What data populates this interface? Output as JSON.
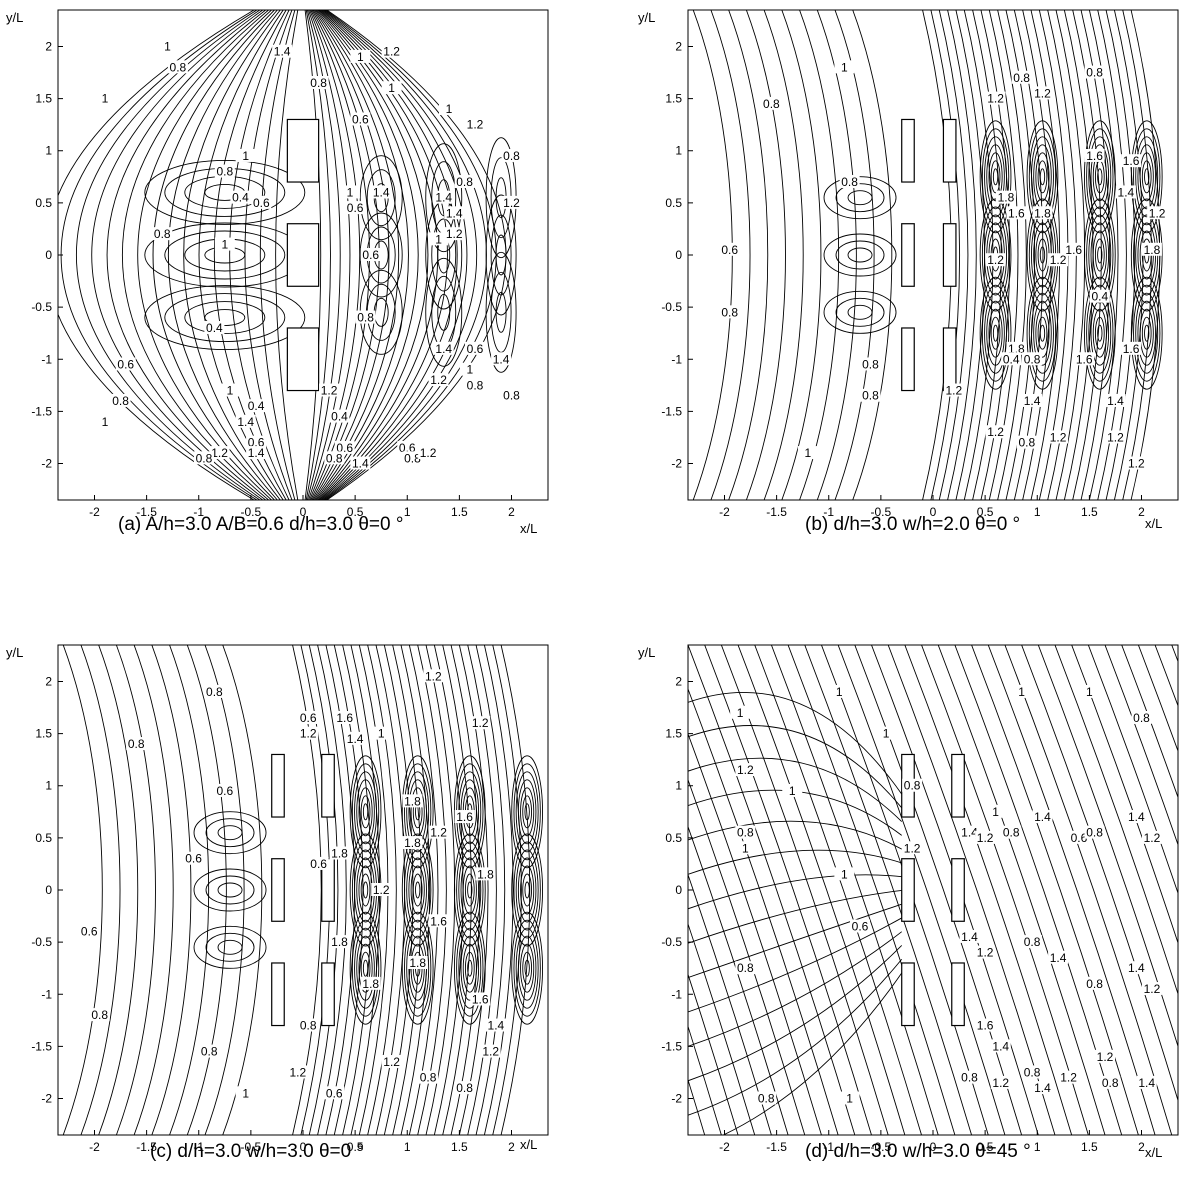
{
  "chart_data": [
    {
      "type": "contour",
      "panel": "a",
      "caption": "(a) A/h=3.0 A/B=0.6 d/h=3.0 θ=0 °",
      "xlabel": "x/L",
      "ylabel": "y/L",
      "xlim": [
        -2.35,
        2.35
      ],
      "ylim": [
        -2.35,
        2.35
      ],
      "x_ticks": [
        "-2",
        "-1.5",
        "-1",
        "-0.5",
        "0",
        "0.5",
        "1",
        "1.5",
        "2"
      ],
      "y_ticks": [
        "2",
        "1.5",
        "1",
        "0.5",
        "0",
        "-0.5",
        "-1",
        "-1.5",
        "-2"
      ],
      "structures": [
        {
          "x0": -0.15,
          "x1": 0.15,
          "y0": 0.7,
          "y1": 1.3
        },
        {
          "x0": -0.15,
          "x1": 0.15,
          "y0": -0.3,
          "y1": 0.3
        },
        {
          "x0": -0.15,
          "x1": 0.15,
          "y0": -1.3,
          "y1": -0.7
        }
      ],
      "contour_labels": [
        {
          "text": "1",
          "x": -1.9,
          "y": 1.5
        },
        {
          "text": "0.8",
          "x": -1.2,
          "y": 1.8
        },
        {
          "text": "1",
          "x": -1.3,
          "y": 2.0
        },
        {
          "text": "0.8",
          "x": -0.75,
          "y": 0.8
        },
        {
          "text": "1",
          "x": -0.55,
          "y": 0.95
        },
        {
          "text": "0.4",
          "x": -0.6,
          "y": 0.55
        },
        {
          "text": "0.6",
          "x": -0.4,
          "y": 0.5
        },
        {
          "text": "1",
          "x": -0.75,
          "y": 0.1
        },
        {
          "text": "0.8",
          "x": -1.35,
          "y": 0.2
        },
        {
          "text": "0.4",
          "x": -0.85,
          "y": -0.7
        },
        {
          "text": "0.6",
          "x": -1.7,
          "y": -1.05
        },
        {
          "text": "0.8",
          "x": -1.75,
          "y": -1.4
        },
        {
          "text": "1",
          "x": -1.9,
          "y": -1.6
        },
        {
          "text": "1",
          "x": -0.7,
          "y": -1.3
        },
        {
          "text": "0.4",
          "x": -0.45,
          "y": -1.45
        },
        {
          "text": "0.6",
          "x": -0.45,
          "y": -1.8
        },
        {
          "text": "1.2",
          "x": -0.8,
          "y": -1.9
        },
        {
          "text": "1.4",
          "x": -0.45,
          "y": -1.9
        },
        {
          "text": "0.8",
          "x": -0.95,
          "y": -1.95
        },
        {
          "text": "1.4",
          "x": -0.55,
          "y": -1.6
        },
        {
          "text": "0.8",
          "x": 0.15,
          "y": 1.65
        },
        {
          "text": "1.4",
          "x": -0.2,
          "y": 1.95
        },
        {
          "text": "0.6",
          "x": 0.55,
          "y": 1.3
        },
        {
          "text": "1",
          "x": 0.55,
          "y": 1.9
        },
        {
          "text": "1.2",
          "x": 0.85,
          "y": 1.95
        },
        {
          "text": "1",
          "x": 0.85,
          "y": 1.6
        },
        {
          "text": "1",
          "x": 1.4,
          "y": 1.4
        },
        {
          "text": "1.2",
          "x": 1.65,
          "y": 1.25
        },
        {
          "text": "0.8",
          "x": 2.0,
          "y": 0.95
        },
        {
          "text": "1.2",
          "x": 2.0,
          "y": 0.5
        },
        {
          "text": "1.4",
          "x": 0.75,
          "y": 0.6
        },
        {
          "text": "1",
          "x": 0.45,
          "y": 0.6
        },
        {
          "text": "0.6",
          "x": 0.5,
          "y": 0.45
        },
        {
          "text": "0.6",
          "x": 0.65,
          "y": 0.0
        },
        {
          "text": "1.4",
          "x": 1.35,
          "y": 0.55
        },
        {
          "text": "0.8",
          "x": 1.55,
          "y": 0.7
        },
        {
          "text": "1",
          "x": 1.3,
          "y": 0.15
        },
        {
          "text": "1.4",
          "x": 1.45,
          "y": 0.4
        },
        {
          "text": "1.2",
          "x": 1.45,
          "y": 0.2
        },
        {
          "text": "0.8",
          "x": 0.6,
          "y": -0.6
        },
        {
          "text": "1.4",
          "x": 1.35,
          "y": -0.9
        },
        {
          "text": "0.6",
          "x": 1.65,
          "y": -0.9
        },
        {
          "text": "1.2",
          "x": 1.3,
          "y": -1.2
        },
        {
          "text": "0.8",
          "x": 1.65,
          "y": -1.25
        },
        {
          "text": "1",
          "x": 1.6,
          "y": -1.1
        },
        {
          "text": "1.4",
          "x": 1.9,
          "y": -1.0
        },
        {
          "text": "0.8",
          "x": 2.0,
          "y": -1.35
        },
        {
          "text": "1.2",
          "x": 0.25,
          "y": -1.3
        },
        {
          "text": "0.4",
          "x": 0.35,
          "y": -1.55
        },
        {
          "text": "0.6",
          "x": 0.4,
          "y": -1.85
        },
        {
          "text": "0.8",
          "x": 0.3,
          "y": -1.95
        },
        {
          "text": "1.4",
          "x": 0.55,
          "y": -2.0
        },
        {
          "text": "0.6",
          "x": 1.0,
          "y": -1.85
        },
        {
          "text": "0.8",
          "x": 1.05,
          "y": -1.95
        },
        {
          "text": "1.2",
          "x": 1.2,
          "y": -1.9
        }
      ]
    },
    {
      "type": "contour",
      "panel": "b",
      "caption": "(b) d/h=3.0 w/h=2.0 θ=0 °",
      "xlabel": "x/L",
      "ylabel": "y/L",
      "xlim": [
        -2.35,
        2.35
      ],
      "ylim": [
        -2.35,
        2.35
      ],
      "x_ticks": [
        "-2",
        "-1.5",
        "-1",
        "-0.5",
        "0",
        "0.5",
        "1",
        "1.5",
        "2"
      ],
      "y_ticks": [
        "2",
        "1.5",
        "1",
        "0.5",
        "0",
        "-0.5",
        "-1",
        "-1.5",
        "-2"
      ],
      "structures": [
        {
          "x0": -0.3,
          "x1": -0.18,
          "y0": 0.7,
          "y1": 1.3
        },
        {
          "x0": -0.3,
          "x1": -0.18,
          "y0": -0.3,
          "y1": 0.3
        },
        {
          "x0": -0.3,
          "x1": -0.18,
          "y0": -1.3,
          "y1": -0.7
        },
        {
          "x0": 0.1,
          "x1": 0.22,
          "y0": 0.7,
          "y1": 1.3
        },
        {
          "x0": 0.1,
          "x1": 0.22,
          "y0": -0.3,
          "y1": 0.3
        },
        {
          "x0": 0.1,
          "x1": 0.22,
          "y0": -1.3,
          "y1": -0.7
        }
      ],
      "contour_labels": [
        {
          "text": "0.8",
          "x": -1.55,
          "y": 1.45
        },
        {
          "text": "1",
          "x": -0.85,
          "y": 1.8
        },
        {
          "text": "0.8",
          "x": -0.8,
          "y": 0.7
        },
        {
          "text": "0.6",
          "x": -1.95,
          "y": 0.05
        },
        {
          "text": "0.8",
          "x": -1.95,
          "y": -0.55
        },
        {
          "text": "0.8",
          "x": -0.6,
          "y": -1.05
        },
        {
          "text": "0.8",
          "x": -0.6,
          "y": -1.35
        },
        {
          "text": "1",
          "x": -1.2,
          "y": -1.9
        },
        {
          "text": "1.2",
          "x": 0.6,
          "y": 1.5
        },
        {
          "text": "0.8",
          "x": 0.85,
          "y": 1.7
        },
        {
          "text": "1.2",
          "x": 1.05,
          "y": 1.55
        },
        {
          "text": "0.8",
          "x": 1.55,
          "y": 1.75
        },
        {
          "text": "1.6",
          "x": 1.55,
          "y": 0.95
        },
        {
          "text": "1.6",
          "x": 1.9,
          "y": 0.9
        },
        {
          "text": "1.8",
          "x": 0.7,
          "y": 0.55
        },
        {
          "text": "1.6",
          "x": 0.8,
          "y": 0.4
        },
        {
          "text": "1.8",
          "x": 1.05,
          "y": 0.4
        },
        {
          "text": "1.4",
          "x": 1.85,
          "y": 0.6
        },
        {
          "text": "1.2",
          "x": 2.15,
          "y": 0.4
        },
        {
          "text": "1.8",
          "x": 2.1,
          "y": 0.05
        },
        {
          "text": "1.2",
          "x": 0.6,
          "y": -0.05
        },
        {
          "text": "1.2",
          "x": 1.2,
          "y": -0.05
        },
        {
          "text": "1.6",
          "x": 1.35,
          "y": 0.05
        },
        {
          "text": "0.4",
          "x": 1.6,
          "y": -0.4
        },
        {
          "text": "1.8",
          "x": 0.8,
          "y": -0.9
        },
        {
          "text": "0.4",
          "x": 0.75,
          "y": -1.0
        },
        {
          "text": "0.8",
          "x": 0.95,
          "y": -1.0
        },
        {
          "text": "1.4",
          "x": 0.95,
          "y": -1.4
        },
        {
          "text": "1.6",
          "x": 1.45,
          "y": -1.0
        },
        {
          "text": "1.6",
          "x": 1.9,
          "y": -0.9
        },
        {
          "text": "1.4",
          "x": 1.75,
          "y": -1.4
        },
        {
          "text": "1.2",
          "x": 0.6,
          "y": -1.7
        },
        {
          "text": "0.8",
          "x": 0.9,
          "y": -1.8
        },
        {
          "text": "1.2",
          "x": 1.2,
          "y": -1.75
        },
        {
          "text": "1.2",
          "x": 1.75,
          "y": -1.75
        },
        {
          "text": "1.2",
          "x": 1.95,
          "y": -2.0
        },
        {
          "text": "1.2",
          "x": 0.2,
          "y": -1.3
        }
      ]
    },
    {
      "type": "contour",
      "panel": "c",
      "caption": "(c) d/h=3.0 w/h=3.0 θ=0 °",
      "xlabel": "x/L",
      "ylabel": "y/L",
      "xlim": [
        -2.35,
        2.35
      ],
      "ylim": [
        -2.35,
        2.35
      ],
      "x_ticks": [
        "-2",
        "-1.5",
        "-1",
        "-0.5",
        "0",
        "0.5",
        "1",
        "1.5",
        "2"
      ],
      "y_ticks": [
        "2",
        "1.5",
        "1",
        "0.5",
        "0",
        "-0.5",
        "-1",
        "-1.5",
        "-2"
      ],
      "structures": [
        {
          "x0": -0.3,
          "x1": -0.18,
          "y0": 0.7,
          "y1": 1.3
        },
        {
          "x0": -0.3,
          "x1": -0.18,
          "y0": -0.3,
          "y1": 0.3
        },
        {
          "x0": -0.3,
          "x1": -0.18,
          "y0": -1.3,
          "y1": -0.7
        },
        {
          "x0": 0.18,
          "x1": 0.3,
          "y0": 0.7,
          "y1": 1.3
        },
        {
          "x0": 0.18,
          "x1": 0.3,
          "y0": -0.3,
          "y1": 0.3
        },
        {
          "x0": 0.18,
          "x1": 0.3,
          "y0": -1.3,
          "y1": -0.7
        }
      ],
      "contour_labels": [
        {
          "text": "0.8",
          "x": -0.85,
          "y": 1.9
        },
        {
          "text": "0.8",
          "x": -1.6,
          "y": 1.4
        },
        {
          "text": "0.6",
          "x": -0.75,
          "y": 0.95
        },
        {
          "text": "0.6",
          "x": -1.05,
          "y": 0.3
        },
        {
          "text": "0.6",
          "x": -2.05,
          "y": -0.4
        },
        {
          "text": "0.8",
          "x": -1.95,
          "y": -1.2
        },
        {
          "text": "0.8",
          "x": -0.9,
          "y": -1.55
        },
        {
          "text": "1",
          "x": -0.55,
          "y": -1.95
        },
        {
          "text": "0.6",
          "x": 0.05,
          "y": 1.65
        },
        {
          "text": "1.2",
          "x": 0.05,
          "y": 1.5
        },
        {
          "text": "1.6",
          "x": 0.4,
          "y": 1.65
        },
        {
          "text": "1",
          "x": 0.75,
          "y": 1.5
        },
        {
          "text": "1.4",
          "x": 0.5,
          "y": 1.45
        },
        {
          "text": "1.2",
          "x": 1.25,
          "y": 2.05
        },
        {
          "text": "1.2",
          "x": 1.7,
          "y": 1.6
        },
        {
          "text": "1.8",
          "x": 1.05,
          "y": 0.85
        },
        {
          "text": "1.8",
          "x": 1.05,
          "y": 0.45
        },
        {
          "text": "1.2",
          "x": 1.3,
          "y": 0.55
        },
        {
          "text": "1.6",
          "x": 1.55,
          "y": 0.7
        },
        {
          "text": "1.8",
          "x": 1.75,
          "y": 0.15
        },
        {
          "text": "1.8",
          "x": 0.35,
          "y": 0.35
        },
        {
          "text": "0.6",
          "x": 0.15,
          "y": 0.25
        },
        {
          "text": "1.2",
          "x": 0.75,
          "y": 0.0
        },
        {
          "text": "1.6",
          "x": 1.3,
          "y": -0.3
        },
        {
          "text": "1.8",
          "x": 0.35,
          "y": -0.5
        },
        {
          "text": "1.8",
          "x": 0.65,
          "y": -0.9
        },
        {
          "text": "1.8",
          "x": 1.1,
          "y": -0.7
        },
        {
          "text": "1.6",
          "x": 1.7,
          "y": -1.05
        },
        {
          "text": "1.4",
          "x": 1.85,
          "y": -1.3
        },
        {
          "text": "1.2",
          "x": 1.8,
          "y": -1.55
        },
        {
          "text": "0.8",
          "x": 1.55,
          "y": -1.9
        },
        {
          "text": "1.2",
          "x": 0.85,
          "y": -1.65
        },
        {
          "text": "0.8",
          "x": 1.2,
          "y": -1.8
        },
        {
          "text": "0.6",
          "x": 0.3,
          "y": -1.95
        },
        {
          "text": "1.2",
          "x": -0.05,
          "y": -1.75
        },
        {
          "text": "0.8",
          "x": 0.05,
          "y": -1.3
        }
      ]
    },
    {
      "type": "contour",
      "panel": "d",
      "caption": "(d) d/h=3.0 w/h=3.0 θ=45 °",
      "xlabel": "x/L",
      "ylabel": "y/L",
      "xlim": [
        -2.35,
        2.35
      ],
      "ylim": [
        -2.35,
        2.35
      ],
      "x_ticks": [
        "-2",
        "-1.5",
        "-1",
        "-0.5",
        "0",
        "0.5",
        "1",
        "1.5",
        "2"
      ],
      "y_ticks": [
        "2",
        "1.5",
        "1",
        "0.5",
        "0",
        "-0.5",
        "-1",
        "-1.5",
        "-2"
      ],
      "structures": [
        {
          "x0": -0.3,
          "x1": -0.18,
          "y0": 0.7,
          "y1": 1.3
        },
        {
          "x0": -0.3,
          "x1": -0.18,
          "y0": -0.3,
          "y1": 0.3
        },
        {
          "x0": -0.3,
          "x1": -0.18,
          "y0": -1.3,
          "y1": -0.7
        },
        {
          "x0": 0.18,
          "x1": 0.3,
          "y0": 0.7,
          "y1": 1.3
        },
        {
          "x0": 0.18,
          "x1": 0.3,
          "y0": -0.3,
          "y1": 0.3
        },
        {
          "x0": 0.18,
          "x1": 0.3,
          "y0": -1.3,
          "y1": -0.7
        }
      ],
      "contour_labels": [
        {
          "text": "1",
          "x": -1.85,
          "y": 1.7
        },
        {
          "text": "1",
          "x": -0.9,
          "y": 1.9
        },
        {
          "text": "1",
          "x": -0.45,
          "y": 1.5
        },
        {
          "text": "1",
          "x": 0.85,
          "y": 1.9
        },
        {
          "text": "1",
          "x": 1.5,
          "y": 1.9
        },
        {
          "text": "0.8",
          "x": 2.0,
          "y": 1.65
        },
        {
          "text": "1.2",
          "x": -1.8,
          "y": 1.15
        },
        {
          "text": "1",
          "x": -1.35,
          "y": 0.95
        },
        {
          "text": "0.8",
          "x": -0.2,
          "y": 1.0
        },
        {
          "text": "0.8",
          "x": -1.8,
          "y": 0.55
        },
        {
          "text": "1",
          "x": -1.8,
          "y": 0.4
        },
        {
          "text": "1",
          "x": -0.85,
          "y": 0.15
        },
        {
          "text": "0.6",
          "x": -0.7,
          "y": -0.35
        },
        {
          "text": "0.8",
          "x": -1.8,
          "y": -0.75
        },
        {
          "text": "1.2",
          "x": -0.2,
          "y": 0.4
        },
        {
          "text": "1.4",
          "x": 0.35,
          "y": 0.55
        },
        {
          "text": "1.2",
          "x": 0.5,
          "y": 0.5
        },
        {
          "text": "1",
          "x": 0.6,
          "y": 0.75
        },
        {
          "text": "0.8",
          "x": 0.75,
          "y": 0.55
        },
        {
          "text": "1.4",
          "x": 1.05,
          "y": 0.7
        },
        {
          "text": "0.6",
          "x": 1.4,
          "y": 0.5
        },
        {
          "text": "0.8",
          "x": 1.55,
          "y": 0.55
        },
        {
          "text": "1.4",
          "x": 1.95,
          "y": 0.7
        },
        {
          "text": "1.2",
          "x": 2.1,
          "y": 0.5
        },
        {
          "text": "1.4",
          "x": 0.35,
          "y": -0.45
        },
        {
          "text": "1.2",
          "x": 0.5,
          "y": -0.6
        },
        {
          "text": "0.8",
          "x": 0.95,
          "y": -0.5
        },
        {
          "text": "1.4",
          "x": 1.2,
          "y": -0.65
        },
        {
          "text": "0.8",
          "x": 1.55,
          "y": -0.9
        },
        {
          "text": "1.4",
          "x": 1.95,
          "y": -0.75
        },
        {
          "text": "1.2",
          "x": 2.1,
          "y": -0.95
        },
        {
          "text": "1.6",
          "x": 0.5,
          "y": -1.3
        },
        {
          "text": "1.4",
          "x": 0.65,
          "y": -1.5
        },
        {
          "text": "0.8",
          "x": 0.35,
          "y": -1.8
        },
        {
          "text": "1.2",
          "x": 0.65,
          "y": -1.85
        },
        {
          "text": "0.8",
          "x": 0.95,
          "y": -1.75
        },
        {
          "text": "1.2",
          "x": 1.3,
          "y": -1.8
        },
        {
          "text": "1.4",
          "x": 1.05,
          "y": -1.9
        },
        {
          "text": "1.2",
          "x": 1.65,
          "y": -1.6
        },
        {
          "text": "0.8",
          "x": 1.7,
          "y": -1.85
        },
        {
          "text": "1.4",
          "x": 2.05,
          "y": -1.85
        },
        {
          "text": "1",
          "x": -0.8,
          "y": -2.0
        },
        {
          "text": "0.8",
          "x": -1.6,
          "y": -2.0
        }
      ]
    }
  ]
}
